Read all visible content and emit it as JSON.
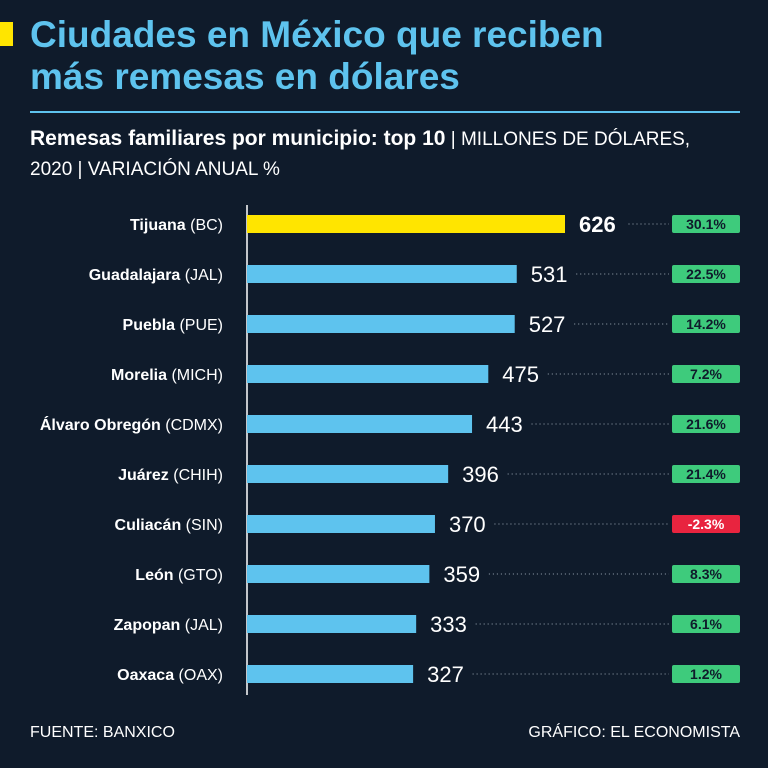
{
  "header": {
    "title_line1": "Ciudades en México que reciben",
    "title_line2": "más remesas en dólares",
    "subtitle_strong": "Remesas familiares por municipio: top 10",
    "subtitle_light": " | MILLONES DE DÓLARES, 2020 | VARIACIÓN ANUAL %"
  },
  "colors": {
    "background": "#0f1b2b",
    "title": "#5ec3ee",
    "bar": "#5ec3ee",
    "highlight_bar": "#ffe500",
    "positive_badge": "#3ecb7c",
    "negative_badge": "#e8243f",
    "accent": "#ffe500"
  },
  "chart_data": {
    "type": "bar",
    "orientation": "horizontal",
    "categories": [
      {
        "name": "Tijuana",
        "state": "(BC)"
      },
      {
        "name": "Guadalajara",
        "state": "(JAL)"
      },
      {
        "name": "Puebla",
        "state": "(PUE)"
      },
      {
        "name": "Morelia",
        "state": "(MICH)"
      },
      {
        "name": "Álvaro Obregón",
        "state": "(CDMX)"
      },
      {
        "name": "Juárez",
        "state": "(CHIH)"
      },
      {
        "name": "Culiacán",
        "state": "(SIN)"
      },
      {
        "name": "León",
        "state": "(GTO)"
      },
      {
        "name": "Zapopan",
        "state": "(JAL)"
      },
      {
        "name": "Oaxaca",
        "state": "(OAX)"
      }
    ],
    "values": [
      626,
      531,
      527,
      475,
      443,
      396,
      370,
      359,
      333,
      327
    ],
    "value_labels": [
      "626",
      "531",
      "527",
      "475",
      "443",
      "396",
      "370",
      "359",
      "333",
      "327"
    ],
    "annual_change": [
      30.1,
      22.5,
      14.2,
      7.2,
      21.6,
      21.4,
      -2.3,
      8.3,
      6.1,
      1.2
    ],
    "annual_change_labels": [
      "30.1%",
      "22.5%",
      "14.2%",
      "7.2%",
      "21.6%",
      "21.4%",
      "-2.3%",
      "8.3%",
      "6.1%",
      "1.2%"
    ],
    "highlight_index": 0,
    "xlim": [
      0,
      626
    ],
    "grid": false,
    "legend": "none"
  },
  "footer": {
    "source": "FUENTE: BANXICO",
    "credit": "GRÁFICO: EL ECONOMISTA"
  }
}
